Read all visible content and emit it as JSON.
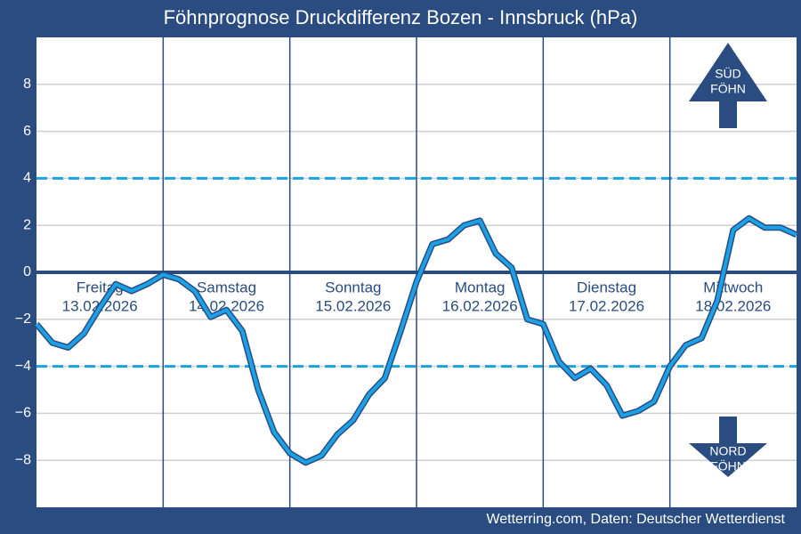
{
  "chart_data": {
    "type": "line",
    "title": "Föhnprognose Druckdifferenz Bozen - Innsbruck (hPa)",
    "source": "Wetterring.com, Daten: Deutscher Wetterdienst",
    "days": [
      {
        "name": "Freitag",
        "date": "13.02.2026"
      },
      {
        "name": "Samstag",
        "date": "14.02.2026"
      },
      {
        "name": "Sonntag",
        "date": "15.02.2026"
      },
      {
        "name": "Montag",
        "date": "16.02.2026"
      },
      {
        "name": "Dienstag",
        "date": "17.02.2026"
      },
      {
        "name": "Mittwoch",
        "date": "18.02.2026"
      }
    ],
    "values": [
      -2.2,
      -3.0,
      -3.2,
      -2.6,
      -1.5,
      -0.5,
      -0.8,
      -0.5,
      -0.1,
      -0.3,
      -0.8,
      -1.9,
      -1.6,
      -2.5,
      -5.0,
      -6.8,
      -7.7,
      -8.1,
      -7.8,
      -6.9,
      -6.3,
      -5.2,
      -4.5,
      -2.5,
      -0.4,
      1.2,
      1.4,
      2.0,
      2.2,
      0.8,
      0.2,
      -2.0,
      -2.2,
      -3.8,
      -4.5,
      -4.1,
      -4.8,
      -6.1,
      -5.9,
      -5.5,
      -4.0,
      -3.1,
      -2.8,
      -1.2,
      1.8,
      2.3,
      1.9,
      1.9,
      1.6
    ],
    "color": "#1ba1e6",
    "ylim": [
      -10,
      10
    ],
    "yticks": [
      {
        "value": -8,
        "label": "−8"
      },
      {
        "value": -6,
        "label": "−6"
      },
      {
        "value": -4,
        "label": "−4"
      },
      {
        "value": -2,
        "label": "−2"
      },
      0,
      2,
      4,
      6,
      8
    ],
    "thresholds": [
      4,
      -4
    ],
    "grid": true,
    "south_label": [
      "SÜD",
      "FÖHN"
    ],
    "north_label": [
      "NORD",
      "FÖHN"
    ]
  }
}
